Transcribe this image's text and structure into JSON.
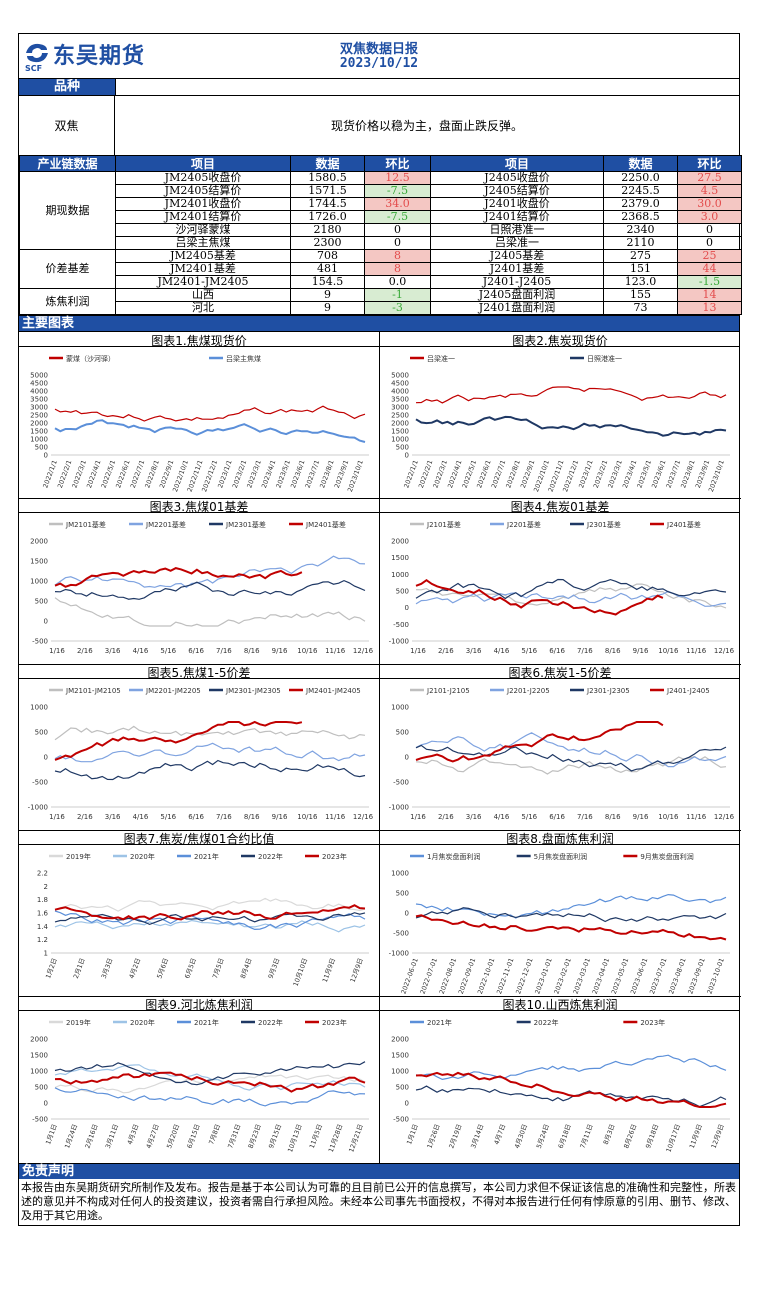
{
  "header": {
    "company": "东吴期货",
    "company_sub": "SCF",
    "title": "双焦数据日报",
    "date": "2023/10/12"
  },
  "section_variety": {
    "label": "品种"
  },
  "summary": {
    "variety": "双焦",
    "text": "现货价格以稳为主，盘面止跌反弹。"
  },
  "table": {
    "section_label": "产业链数据",
    "headers": [
      "项目",
      "数据",
      "环比",
      "项目",
      "数据",
      "环比"
    ],
    "groups": [
      {
        "name": "期现数据",
        "rows": [
          [
            "JM2405收盘价",
            "1580.5",
            "12.5",
            "J2405收盘价",
            "2250.0",
            "27.5"
          ],
          [
            "JM2405结算价",
            "1571.5",
            "-7.5",
            "J2405结算价",
            "2245.5",
            "4.5"
          ],
          [
            "JM2401收盘价",
            "1744.5",
            "34.0",
            "J2401收盘价",
            "2379.0",
            "30.0"
          ],
          [
            "JM2401结算价",
            "1726.0",
            "-7.5",
            "J2401结算价",
            "2368.5",
            "3.0"
          ],
          [
            "沙河驿蒙煤",
            "2180",
            "0",
            "日照港准一",
            "2340",
            "0"
          ],
          [
            "吕梁主焦煤",
            "2300",
            "0",
            "吕梁准一",
            "2110",
            "0"
          ]
        ]
      },
      {
        "name": "价差基差",
        "rows": [
          [
            "JM2405基差",
            "708",
            "8",
            "J2405基差",
            "275",
            "25"
          ],
          [
            "JM2401基差",
            "481",
            "8",
            "J2401基差",
            "151",
            "44"
          ],
          [
            "JM2401-JM2405",
            "154.5",
            "0.0",
            "J2401-J2405",
            "123.0",
            "-1.5"
          ]
        ]
      },
      {
        "name": "炼焦利润",
        "rows": [
          [
            "山西",
            "9",
            "-1",
            "J2405盘面利润",
            "155",
            "14"
          ],
          [
            "河北",
            "9",
            "-3",
            "J2401盘面利润",
            "73",
            "13"
          ]
        ]
      }
    ]
  },
  "section_charts": {
    "label": "主要图表"
  },
  "charts": [
    {
      "title": "图表1.焦煤现货价",
      "legend": [
        "蒙煤（沙河驿）",
        "吕梁主焦煤"
      ],
      "colors": [
        "#c00000",
        "#5b8fd9"
      ],
      "yticks": [
        "5000",
        "4500",
        "4000",
        "3500",
        "3000",
        "2500",
        "2000",
        "1500",
        "1000",
        "500",
        "0"
      ],
      "xticks": [
        "2022/1/1",
        "2022/2/1",
        "2022/3/1",
        "2022/4/1",
        "2022/5/1",
        "2022/6/1",
        "2022/7/1",
        "2022/8/1",
        "2022/9/1",
        "2022/10/1",
        "2022/11/1",
        "2022/12/1",
        "2023/1/1",
        "2023/2/1",
        "2023/3/1",
        "2023/4/1",
        "2023/5/1",
        "2023/6/1",
        "2023/7/1",
        "2023/8/1",
        "2023/9/1",
        "2023/10/1"
      ],
      "xrot": true
    },
    {
      "title": "图表2.焦炭现货价",
      "legend": [
        "吕梁准一",
        "日照港准一"
      ],
      "colors": [
        "#c00000",
        "#1f3864"
      ],
      "yticks": [
        "5000",
        "4500",
        "4000",
        "3500",
        "3000",
        "2500",
        "2000",
        "1500",
        "1000",
        "500",
        "0"
      ],
      "xticks": [
        "2022/1/1",
        "2022/2/1",
        "2022/3/1",
        "2022/4/1",
        "2022/5/1",
        "2022/6/1",
        "2022/7/1",
        "2022/8/1",
        "2022/9/1",
        "2022/10/1",
        "2022/11/1",
        "2022/12/1",
        "2023/1/1",
        "2023/2/1",
        "2023/3/1",
        "2023/4/1",
        "2023/5/1",
        "2023/6/1",
        "2023/7/1",
        "2023/8/1",
        "2023/9/1",
        "2023/10/1"
      ],
      "xrot": true
    },
    {
      "title": "图表3.焦煤01基差",
      "legend": [
        "JM2101基差",
        "JM2201基差",
        "JM2301基差",
        "JM2401基差"
      ],
      "colors": [
        "#bfbfbf",
        "#7fa3e0",
        "#1f3864",
        "#c00000"
      ],
      "yticks": [
        "2000",
        "1500",
        "1000",
        "500",
        "0",
        "-500"
      ],
      "xticks": [
        "1/16",
        "2/16",
        "3/16",
        "4/16",
        "5/16",
        "6/16",
        "7/16",
        "8/16",
        "9/16",
        "10/16",
        "11/16",
        "12/16"
      ],
      "xrot": false
    },
    {
      "title": "图表4.焦炭01基差",
      "legend": [
        "J2101基差",
        "J2201基差",
        "J2301基差",
        "J2401基差"
      ],
      "colors": [
        "#bfbfbf",
        "#7fa3e0",
        "#1f3864",
        "#c00000"
      ],
      "yticks": [
        "2000",
        "1500",
        "1000",
        "500",
        "0",
        "-500",
        "-1000"
      ],
      "xticks": [
        "1/16",
        "2/16",
        "3/16",
        "4/16",
        "5/16",
        "6/16",
        "7/16",
        "8/16",
        "9/16",
        "10/16",
        "11/16",
        "12/16"
      ],
      "xrot": false
    },
    {
      "title": "图表5.焦煤1-5价差",
      "legend": [
        "JM2101-JM2105",
        "JM2201-JM2205",
        "JM2301-JM2305",
        "JM2401-JM2405"
      ],
      "colors": [
        "#bfbfbf",
        "#7fa3e0",
        "#1f3864",
        "#c00000"
      ],
      "yticks": [
        "1000",
        "500",
        "0",
        "-500",
        "-1000"
      ],
      "xticks": [
        "1/16",
        "2/16",
        "3/16",
        "4/16",
        "5/16",
        "6/16",
        "7/16",
        "8/16",
        "9/16",
        "10/16",
        "11/16",
        "12/16"
      ],
      "xrot": false
    },
    {
      "title": "图表6.焦炭1-5价差",
      "legend": [
        "J2101-J2105",
        "J2201-J2205",
        "J2301-J2305",
        "J2401-J2405"
      ],
      "colors": [
        "#bfbfbf",
        "#7fa3e0",
        "#1f3864",
        "#c00000"
      ],
      "yticks": [
        "1000",
        "500",
        "0",
        "-500",
        "-1000"
      ],
      "xticks": [
        "1/16",
        "2/16",
        "3/16",
        "4/16",
        "5/16",
        "6/16",
        "7/16",
        "8/16",
        "9/16",
        "10/16",
        "11/16",
        "12/16"
      ],
      "xrot": false
    },
    {
      "title": "图表7.焦炭/焦煤01合约比值",
      "legend": [
        "2019年",
        "2020年",
        "2021年",
        "2022年",
        "2023年"
      ],
      "colors": [
        "#d9d9d9",
        "#9dc3e6",
        "#5b8fd9",
        "#1f3864",
        "#c00000"
      ],
      "yticks": [
        "2.2",
        "2",
        "1.8",
        "1.6",
        "1.4",
        "1.2",
        "1"
      ],
      "xticks": [
        "1月2日",
        "2月1日",
        "3月3日",
        "4月2日",
        "5月6日",
        "6月5日",
        "7月5日",
        "8月4日",
        "9月3日",
        "10月10日",
        "11月9日",
        "12月9日"
      ],
      "xrot": true
    },
    {
      "title": "图表8.盘面炼焦利润",
      "legend": [
        "1月焦炭盘面利润",
        "5月焦炭盘面利润",
        "9月焦炭盘面利润"
      ],
      "colors": [
        "#5b8fd9",
        "#1f3864",
        "#c00000"
      ],
      "yticks": [
        "1000",
        "500",
        "0",
        "-500",
        "-1000"
      ],
      "xticks": [
        "2022-06-01",
        "2022-07-01",
        "2022-08-01",
        "2022-09-01",
        "2022-10-01",
        "2022-11-01",
        "2022-12-01",
        "2023-01-01",
        "2023-02-01",
        "2023-03-01",
        "2023-04-01",
        "2023-05-01",
        "2023-06-01",
        "2023-07-01",
        "2023-08-01",
        "2023-09-01",
        "2023-10-01"
      ],
      "xrot": true
    },
    {
      "title": "图表9.河北炼焦利润",
      "legend": [
        "2019年",
        "2020年",
        "2021年",
        "2022年",
        "2023年"
      ],
      "colors": [
        "#d9d9d9",
        "#9dc3e6",
        "#5b8fd9",
        "#1f3864",
        "#c00000"
      ],
      "yticks": [
        "2000",
        "1500",
        "1000",
        "500",
        "0",
        "-500"
      ],
      "xticks": [
        "1月1日",
        "1月24日",
        "2月16日",
        "3月11日",
        "4月3日",
        "4月27日",
        "5月20日",
        "6月15日",
        "7月8日",
        "7月31日",
        "8月23日",
        "9月15日",
        "10月13日",
        "11月5日",
        "11月28日",
        "12月21日"
      ],
      "xrot": true
    },
    {
      "title": "图表10.山西炼焦利润",
      "legend": [
        "2021年",
        "2022年",
        "2023年"
      ],
      "colors": [
        "#5b8fd9",
        "#1f3864",
        "#c00000"
      ],
      "yticks": [
        "2000",
        "1500",
        "1000",
        "500",
        "0",
        "-500"
      ],
      "xticks": [
        "1月1日",
        "1月26日",
        "2月19日",
        "3月14日",
        "4月7日",
        "4月30日",
        "5月24日",
        "6月18日",
        "7月11日",
        "8月3日",
        "8月26日",
        "9月18日",
        "10月17日",
        "11月9日",
        "12月9日"
      ],
      "xrot": true
    }
  ],
  "disclaimer": {
    "label": "免责声明",
    "text": "本报告由东吴期货研究所制作及发布。报告是基于本公司认为可靠的且目前已公开的信息撰写，本公司力求但不保证该信息的准确性和完整性，所表述的意见并不构成对任何人的投资建议，投资者需自行承担风险。未经本公司事先书面授权，不得对本报告进行任何有悖原意的引用、删节、修改、及用于其它用途。"
  }
}
